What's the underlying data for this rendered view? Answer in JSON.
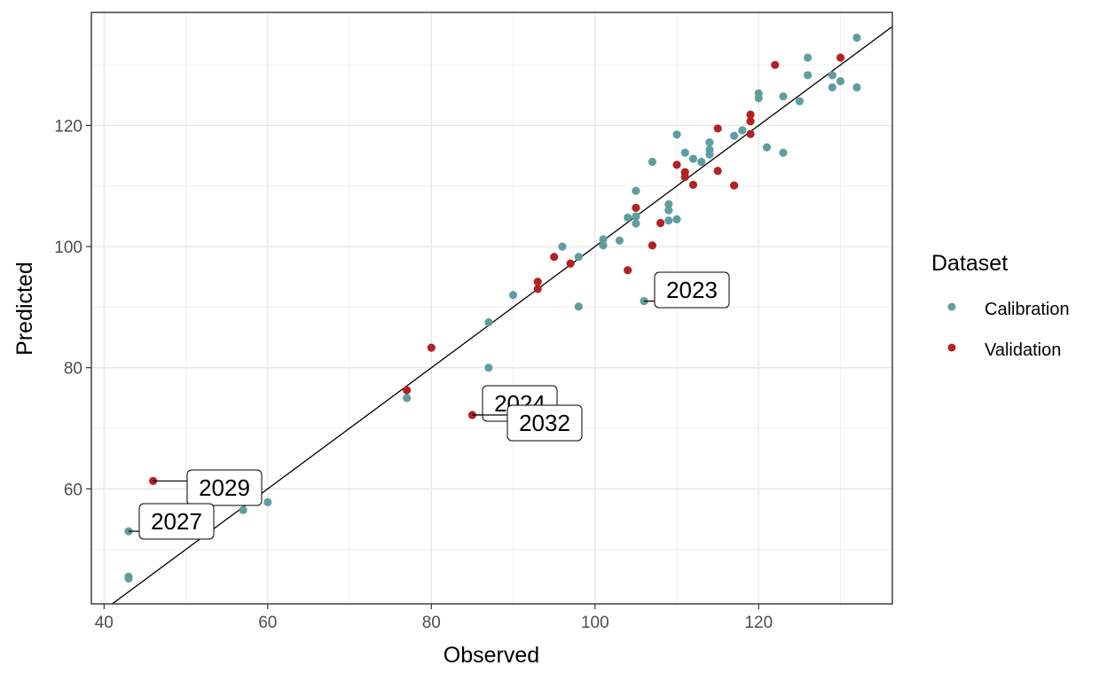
{
  "chart_data": {
    "type": "scatter",
    "title": "",
    "xlabel": "Observed",
    "ylabel": "Predicted",
    "xlim": [
      41,
      136
    ],
    "ylim": [
      41,
      139
    ],
    "x_ticks": [
      40,
      60,
      80,
      100,
      120
    ],
    "y_ticks": [
      60,
      80,
      100,
      120
    ],
    "x_tick_labels": [
      "40",
      "60",
      "80",
      "100",
      "120"
    ],
    "y_tick_labels": [
      "60",
      "80",
      "100",
      "120"
    ],
    "grid": true,
    "legend": {
      "title": "Dataset",
      "position": "right"
    },
    "reference_line": {
      "slope": 1,
      "intercept": 0
    },
    "series": [
      {
        "name": "Calibration",
        "color": "#5f9ea0",
        "points": [
          [
            43,
            53
          ],
          [
            43,
            45.5
          ],
          [
            43,
            45.2
          ],
          [
            57,
            56.5
          ],
          [
            60,
            57.8
          ],
          [
            77,
            75
          ],
          [
            87,
            87.5
          ],
          [
            87,
            80
          ],
          [
            90,
            92
          ],
          [
            96,
            100
          ],
          [
            98,
            98.3
          ],
          [
            98,
            90.1
          ],
          [
            101,
            101.2
          ],
          [
            101,
            100.2
          ],
          [
            103,
            101
          ],
          [
            104,
            104.8
          ],
          [
            105,
            109.2
          ],
          [
            105,
            105
          ],
          [
            105,
            103.8
          ],
          [
            106,
            91
          ],
          [
            107,
            114
          ],
          [
            109,
            107
          ],
          [
            109,
            106
          ],
          [
            109,
            104.3
          ],
          [
            110,
            118.5
          ],
          [
            110,
            104.5
          ],
          [
            111,
            115.5
          ],
          [
            112,
            114.5
          ],
          [
            113,
            114
          ],
          [
            114,
            117.2
          ],
          [
            114,
            116
          ],
          [
            114,
            115.2
          ],
          [
            117,
            118.3
          ],
          [
            118,
            119.2
          ],
          [
            120,
            125.3
          ],
          [
            120,
            124.5
          ],
          [
            121,
            116.4
          ],
          [
            123,
            124.8
          ],
          [
            123,
            115.5
          ],
          [
            125,
            124
          ],
          [
            126,
            131.2
          ],
          [
            126,
            128.3
          ],
          [
            129,
            128.3
          ],
          [
            129,
            126.3
          ],
          [
            130,
            127.3
          ],
          [
            132,
            134.5
          ],
          [
            132,
            126.3
          ]
        ]
      },
      {
        "name": "Validation",
        "color": "#b22222",
        "points": [
          [
            46,
            61.3
          ],
          [
            77,
            76.3
          ],
          [
            80,
            83.3
          ],
          [
            85,
            72.2
          ],
          [
            93,
            94.2
          ],
          [
            93,
            93
          ],
          [
            95,
            98.3
          ],
          [
            97,
            97.2
          ],
          [
            104,
            96.1
          ],
          [
            105,
            106.4
          ],
          [
            107,
            100.2
          ],
          [
            108,
            103.9
          ],
          [
            110,
            113.5
          ],
          [
            111,
            112.3
          ],
          [
            111,
            111.5
          ],
          [
            112,
            110.2
          ],
          [
            115,
            119.5
          ],
          [
            115,
            112.5
          ],
          [
            117,
            110.1
          ],
          [
            119,
            121.8
          ],
          [
            119,
            120.7
          ],
          [
            119,
            118.6
          ],
          [
            122,
            130
          ],
          [
            130,
            131.2
          ]
        ]
      }
    ],
    "annotations": [
      {
        "text": "2023",
        "x": 106,
        "y": 91
      },
      {
        "text": "2024",
        "x": 85,
        "y": 72.2
      },
      {
        "text": "2032",
        "x": 85,
        "y": 72.2
      },
      {
        "text": "2029",
        "x": 46,
        "y": 61.3
      },
      {
        "text": "2027",
        "x": 43,
        "y": 53
      }
    ]
  }
}
